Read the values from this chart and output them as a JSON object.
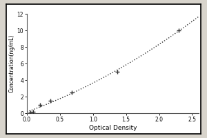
{
  "x_data": [
    0.047,
    0.094,
    0.196,
    0.352,
    0.682,
    1.372,
    2.299
  ],
  "y_data": [
    0.1,
    0.2,
    1.0,
    1.5,
    2.5,
    5.0,
    10.0
  ],
  "xlabel": "Optical Density",
  "ylabel": "Concentration(ng/mL)",
  "xlim": [
    0,
    2.6
  ],
  "ylim": [
    0,
    12
  ],
  "xticks": [
    0,
    0.5,
    1.0,
    1.5,
    2.0,
    2.5
  ],
  "yticks": [
    0,
    2,
    4,
    6,
    8,
    10,
    12
  ],
  "line_color": "#333333",
  "marker_color": "#333333",
  "bg_color": "#ffffff",
  "plot_bg": "#ffffff",
  "outer_bg": "#d8d4cc",
  "border_color": "#000000"
}
